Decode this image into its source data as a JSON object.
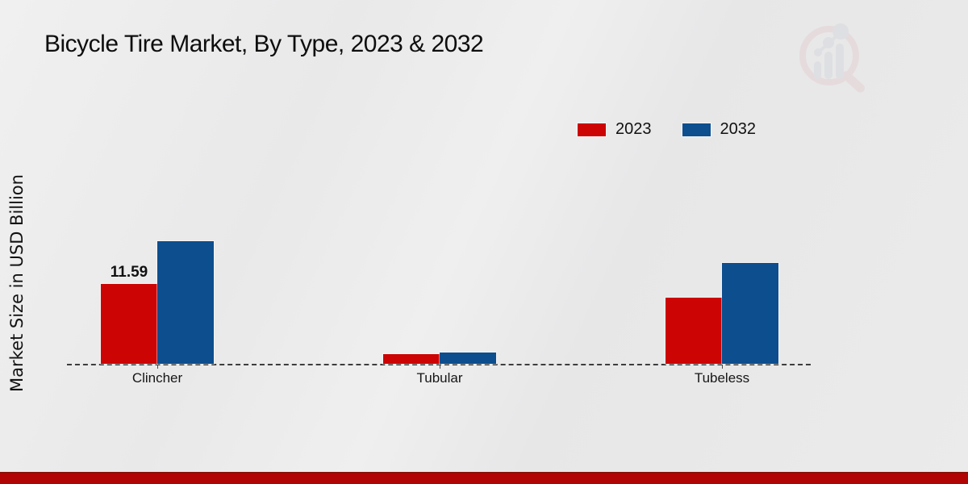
{
  "title": "Bicycle Tire Market, By Type, 2023 & 2032",
  "chart_data": {
    "type": "bar",
    "title": "Bicycle Tire Market, By Type, 2023 & 2032",
    "xlabel": "",
    "ylabel": "Market Size in USD Billion",
    "categories": [
      "Clincher",
      "Tubular",
      "Tubeless"
    ],
    "series": [
      {
        "name": "2023",
        "color": "#cc0404",
        "values": [
          11.59,
          1.4,
          9.6
        ]
      },
      {
        "name": "2032",
        "color": "#0d4e8e",
        "values": [
          17.8,
          1.6,
          14.6
        ]
      }
    ],
    "value_labels": [
      {
        "series": "2023",
        "category": "Clincher",
        "text": "11.59"
      }
    ],
    "legend_position": "top-right",
    "legend_entries": [
      "2023",
      "2032"
    ],
    "y_axis_ticks_visible": false,
    "baseline_style": "dashed",
    "grid": false
  },
  "branding": {
    "logo_icon": "magnifier-bar-chart-watermark",
    "footer_bar_color": "#b10404",
    "logo_ring_color": "#dfb9b9",
    "logo_bar_color": "#c3c7cf"
  }
}
